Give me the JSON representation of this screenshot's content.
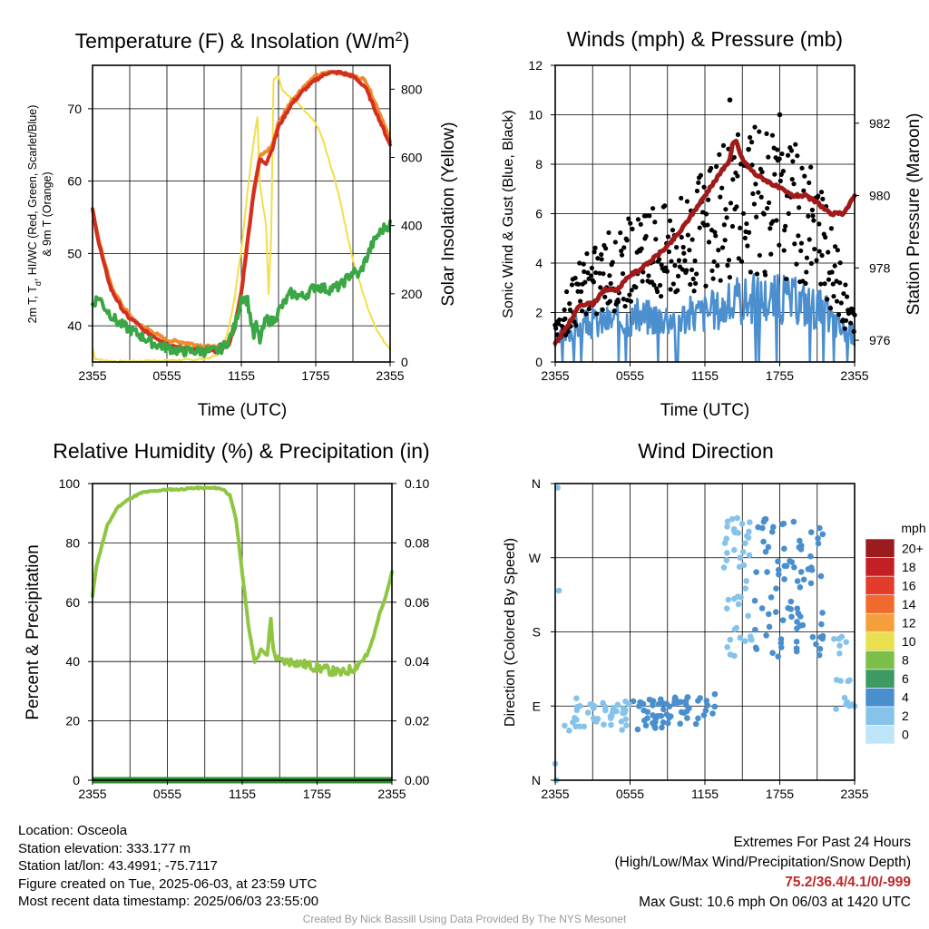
{
  "time_ticks": [
    "2355",
    "0555",
    "1155",
    "1755",
    "2355"
  ],
  "colors": {
    "temp_red": "#d32f20",
    "temp_orange": "#f08a2c",
    "temp_green": "#3aa645",
    "insolation": "#f2df4a",
    "wind": "#4b8fcf",
    "gust": "#000000",
    "pressure": "#a01a1a",
    "rh": "#8ec641",
    "precip": "#2e8b2e"
  },
  "chart_data": [
    {
      "type": "line",
      "title": "Temperature (F) & Insolation (W/m",
      "title_sup": "2",
      "title_end": ")",
      "xlabel": "Time (UTC)",
      "ylabel_line1": "2m T, T",
      "ylabel_sub": "d",
      "ylabel_line1b": ", HI/WC (Red, Green, Scarlet/Blue)",
      "ylabel_line2": "& 9m T (Orange)",
      "y2label": "Solar Insolation (Yellow)",
      "ylim": [
        35,
        76
      ],
      "yticks": [
        "40",
        "50",
        "60",
        "70"
      ],
      "y2lim": [
        0,
        870
      ],
      "y2ticks": [
        "0",
        "200",
        "400",
        "600",
        "800"
      ],
      "x_hours": [
        0,
        24
      ],
      "series": [
        {
          "key": "t9m",
          "x": [
            0,
            0.5,
            1,
            1.5,
            2,
            2.5,
            3,
            3.5,
            4,
            4.5,
            5,
            5.5,
            6,
            7,
            8,
            9,
            10,
            10.5,
            11,
            11.5,
            12,
            12.5,
            13,
            13.5,
            14,
            14.5,
            15,
            16,
            17,
            18,
            19,
            20,
            21,
            22,
            22.5,
            23,
            23.5,
            24
          ],
          "y": [
            56,
            52,
            48.5,
            45.5,
            44,
            42.5,
            41.5,
            40.5,
            40,
            39.5,
            39,
            38.5,
            38,
            37.8,
            37.5,
            37.2,
            37,
            37.5,
            38,
            40.5,
            45,
            52,
            59,
            63.5,
            64,
            65,
            68,
            71,
            73,
            74.5,
            75,
            75,
            74.5,
            74,
            72,
            70,
            68,
            65.5
          ]
        },
        {
          "key": "t2m",
          "x": [
            0,
            0.5,
            1,
            1.5,
            2,
            2.5,
            3,
            3.5,
            4,
            4.5,
            5,
            5.5,
            6,
            7,
            8,
            9,
            10,
            10.5,
            11,
            11.5,
            12,
            12.5,
            13,
            13.5,
            14,
            14.5,
            15,
            16,
            17,
            18,
            19,
            20,
            21,
            22,
            22.5,
            23,
            23.5,
            24
          ],
          "y": [
            56,
            51.5,
            48,
            45,
            43.5,
            42,
            41,
            40.5,
            39.5,
            39,
            38.5,
            38,
            37.5,
            37,
            36.8,
            36.5,
            36.5,
            37,
            37.5,
            40,
            44.5,
            51.5,
            58.5,
            63,
            62.5,
            64.5,
            67.5,
            70.5,
            72.5,
            74,
            75,
            75,
            74.5,
            73,
            71,
            69,
            67,
            65
          ]
        },
        {
          "key": "td",
          "x": [
            0,
            0.5,
            1,
            1.5,
            2,
            2.5,
            3,
            3.5,
            4,
            4.5,
            5,
            6,
            7,
            8,
            9,
            10,
            10.5,
            11,
            11.5,
            12,
            12.5,
            13,
            13.2,
            13.5,
            14,
            14.5,
            15,
            16,
            17,
            18,
            19,
            20,
            20.5,
            21,
            21.5,
            22,
            22.5,
            23,
            23.5,
            24
          ],
          "y": [
            43,
            44,
            42.5,
            41.5,
            40.5,
            40,
            39.5,
            39,
            38.5,
            38,
            37.5,
            37,
            36.5,
            36.5,
            36.5,
            36.5,
            37,
            38,
            40,
            44,
            43.5,
            38.5,
            40,
            38,
            41,
            40.5,
            42,
            44.5,
            44,
            45.5,
            45,
            45.5,
            46.5,
            47.5,
            47,
            49,
            51,
            52.5,
            53.5,
            54
          ]
        },
        {
          "key": "insolation",
          "x": [
            0,
            0.2,
            1,
            2,
            3,
            4,
            5,
            6,
            7,
            8,
            8.5,
            9,
            9.5,
            10,
            10.5,
            11,
            11.5,
            12,
            12.5,
            13,
            13.3,
            13.5,
            14,
            14.2,
            14.4,
            14.6,
            15,
            15.3,
            15.8,
            16.5,
            17,
            17.5,
            18,
            18.5,
            19,
            19.5,
            20,
            20.5,
            21,
            21.5,
            22,
            22.5,
            23,
            23.5,
            24
          ],
          "y": [
            40,
            10,
            4,
            2,
            2,
            3,
            4,
            5,
            6,
            6,
            8,
            10,
            12,
            20,
            40,
            100,
            200,
            330,
            500,
            650,
            720,
            520,
            400,
            200,
            350,
            830,
            840,
            800,
            780,
            760,
            740,
            720,
            700,
            660,
            600,
            540,
            470,
            380,
            300,
            240,
            180,
            130,
            90,
            60,
            40
          ]
        }
      ]
    },
    {
      "type": "scatter",
      "title": "Winds (mph) & Pressure (mb)",
      "xlabel": "Time (UTC)",
      "ylabel": "Sonic Wind & Gust (Blue, Black)",
      "y2label": "Station Pressure (Maroon)",
      "ylim": [
        0,
        12
      ],
      "yticks": [
        "0",
        "2",
        "4",
        "6",
        "8",
        "10",
        "12"
      ],
      "y2lim": [
        975.4,
        983.6
      ],
      "y2ticks": [
        "976",
        "978",
        "980",
        "982"
      ],
      "series": [
        {
          "key": "pressure",
          "x": [
            0,
            1,
            1.5,
            2,
            3,
            4,
            5,
            6,
            7,
            8,
            9,
            10,
            11,
            12,
            13,
            14,
            14.2,
            14.5,
            15,
            15.5,
            16,
            17,
            18,
            19,
            20,
            21,
            22,
            23,
            23.5,
            24
          ],
          "y": [
            975.9,
            976.4,
            976.7,
            977.0,
            977.0,
            977.4,
            977.4,
            977.8,
            978.0,
            978.3,
            978.6,
            979.0,
            979.5,
            980.0,
            980.5,
            981.0,
            981.4,
            981.5,
            981.0,
            980.8,
            980.6,
            980.4,
            980.2,
            980.0,
            980.0,
            979.8,
            979.5,
            979.5,
            979.7,
            980.0
          ]
        },
        {
          "key": "wind_envelope",
          "x": [
            0,
            1,
            2,
            3,
            4,
            5,
            6,
            7,
            8,
            9,
            10,
            11,
            12,
            13,
            14,
            15,
            16,
            17,
            18,
            19,
            20,
            21,
            22,
            23,
            24
          ],
          "y": [
            0.8,
            1.3,
            1.6,
            1.7,
            1.8,
            1.9,
            1.9,
            2.0,
            2.0,
            2.0,
            2.0,
            2.1,
            2.2,
            2.3,
            2.5,
            2.7,
            2.8,
            2.8,
            2.8,
            2.7,
            2.6,
            2.4,
            2.0,
            1.4,
            1.2
          ]
        },
        {
          "key": "gust_envelope",
          "x": [
            0,
            1,
            2,
            3,
            4,
            5,
            6,
            7,
            8,
            9,
            10,
            11,
            12,
            13,
            14,
            15,
            16,
            17,
            18,
            19,
            20,
            21,
            22,
            23,
            24
          ],
          "y": [
            1.0,
            2.0,
            2.8,
            3.2,
            3.5,
            3.7,
            3.9,
            4.0,
            4.2,
            4.5,
            4.8,
            5.0,
            5.2,
            5.5,
            6.2,
            6.5,
            6.4,
            6.3,
            6.2,
            6.0,
            5.6,
            5.0,
            4.0,
            2.5,
            1.5
          ]
        },
        {
          "key": "gust_highlights",
          "x": [
            14,
            15.5,
            18
          ],
          "y": [
            10.6,
            8.6,
            10.0
          ]
        }
      ]
    },
    {
      "type": "line",
      "title": "Relative Humidity (%) & Precipitation (in)",
      "ylabel": "Percent & Precipitation",
      "ylim": [
        0,
        100
      ],
      "yticks": [
        "0",
        "20",
        "40",
        "60",
        "80",
        "100"
      ],
      "y2lim": [
        0,
        0.1
      ],
      "y2ticks": [
        "0.00",
        "0.02",
        "0.04",
        "0.06",
        "0.08",
        "0.10"
      ],
      "series": [
        {
          "key": "rh",
          "x": [
            0,
            0.3,
            0.8,
            1.2,
            2,
            3,
            4,
            5,
            6,
            7,
            8,
            9,
            10,
            10.5,
            11,
            11.5,
            12,
            12.5,
            13,
            13.3,
            13.5,
            14,
            14.3,
            14.5,
            15,
            16,
            17,
            18,
            19,
            20,
            20.5,
            21,
            21.5,
            22,
            22.5,
            23,
            23.5,
            24
          ],
          "y": [
            62,
            72,
            80,
            86,
            92,
            95,
            97,
            97.5,
            98,
            98,
            98.5,
            98.5,
            98.5,
            98,
            96,
            88,
            70,
            52,
            40,
            42,
            44,
            42,
            55,
            43,
            40,
            40,
            39,
            38,
            37,
            36,
            37,
            38,
            40,
            42,
            48,
            56,
            62,
            70
          ]
        },
        {
          "key": "precip",
          "x": [
            0,
            24
          ],
          "y": [
            0,
            0
          ]
        }
      ]
    },
    {
      "type": "scatter",
      "title": "Wind Direction",
      "ylabel": "Direction (Colored By Speed)",
      "yticks": [
        "N",
        "E",
        "S",
        "W",
        "N"
      ],
      "colorbar_title": "mph",
      "colorbar_labels": [
        "0",
        "2",
        "4",
        "6",
        "8",
        "10",
        "12",
        "14",
        "16",
        "18",
        "20+"
      ],
      "colorbar_colors": [
        "#bfe6f8",
        "#86c3ea",
        "#4a8fcd",
        "#3c9a62",
        "#7bbf48",
        "#e8e04e",
        "#f5a03c",
        "#f06a2e",
        "#e23d2a",
        "#c32026",
        "#9b1b1e"
      ],
      "series": [
        {
          "key": "direction_deg",
          "x": [
            0,
            0.1,
            0.2,
            0.3,
            23.2,
            23.4,
            23.6,
            23.8,
            24
          ],
          "y": [
            20,
            0,
            355,
            230,
            100,
            95,
            90,
            92,
            90
          ]
        }
      ]
    }
  ],
  "footer": {
    "location": "Location: Osceola",
    "elevation": "Station elevation: 333.177 m",
    "latlon": "Station lat/lon: 43.4991; -75.7117",
    "created": "Figure created on Tue, 2025-06-03, at 23:59 UTC",
    "recent": "Most recent data timestamp: 2025/06/03 23:55:00",
    "extremes_title": "Extremes For Past 24 Hours",
    "extremes_subtitle": "(High/Low/Max Wind/Precipitation/Snow Depth)",
    "extremes_values": "75.2/36.4/4.1/0/-999",
    "max_gust": "Max Gust: 10.6 mph On 06/03 at 1420 UTC",
    "credit": "Created By Nick Bassill Using Data Provided By The NYS Mesonet"
  }
}
